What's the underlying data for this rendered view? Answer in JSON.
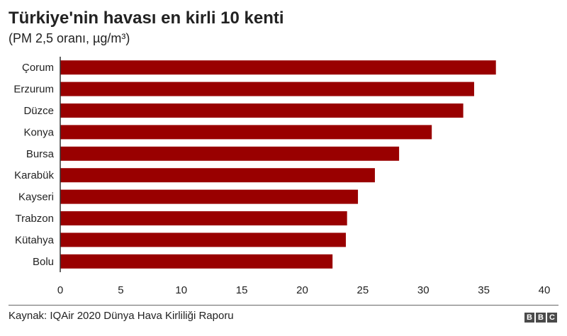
{
  "header": {
    "title": "Türkiye'nin havası en kirli 10 kenti",
    "subtitle": "(PM 2,5 oranı, µg/m³)"
  },
  "footer": {
    "source": "Kaynak: IQAir 2020 Dünya Hava Kirliliği Raporu",
    "logo_letters": [
      "B",
      "B",
      "C"
    ]
  },
  "colors": {
    "bar": "#990000",
    "axis": "#333333",
    "text": "#222222"
  },
  "chart_data": {
    "type": "bar",
    "orientation": "horizontal",
    "title": "Türkiye'nin havası en kirli 10 kenti",
    "subtitle": "(PM 2,5 oranı, µg/m³)",
    "categories": [
      "Çorum",
      "Erzurum",
      "Düzce",
      "Konya",
      "Bursa",
      "Karabük",
      "Kayseri",
      "Trabzon",
      "Kütahya",
      "Bolu"
    ],
    "values": [
      36.0,
      34.2,
      33.3,
      30.7,
      28.0,
      26.0,
      24.6,
      23.7,
      23.6,
      22.5
    ],
    "xlim": [
      0,
      40
    ],
    "xticks": [
      "0",
      "5",
      "10",
      "15",
      "20",
      "25",
      "30",
      "35",
      "40"
    ],
    "grid": false,
    "legend": "none"
  }
}
